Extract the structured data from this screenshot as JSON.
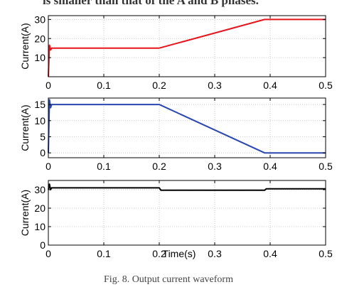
{
  "header_text": "is smaller than that of the A and B phases.",
  "caption": "Fig. 8.    Output current waveform",
  "chart_data": [
    {
      "type": "line",
      "title": "",
      "xlabel": "",
      "ylabel": "Current(A)",
      "xlim": [
        0,
        0.5
      ],
      "ylim": [
        0,
        32
      ],
      "xticks": [
        0,
        0.1,
        0.2,
        0.3,
        0.4,
        0.5
      ],
      "xtick_labels": [
        "0",
        "0.1",
        "0.2",
        "0.3",
        "0.4",
        "0.5"
      ],
      "yticks": [
        10,
        20,
        30
      ],
      "ytick_labels": [
        "10",
        "20",
        "30"
      ],
      "grid": true,
      "series": [
        {
          "color": "#e8141b",
          "x": [
            0,
            0.002,
            0.004,
            0.006,
            0.2,
            0.39,
            0.5
          ],
          "y": [
            0,
            16.5,
            14,
            15,
            15,
            30,
            30
          ]
        }
      ]
    },
    {
      "type": "line",
      "title": "",
      "xlabel": "",
      "ylabel": "Current(A)",
      "xlim": [
        0,
        0.5
      ],
      "ylim": [
        -1.5,
        17
      ],
      "xticks": [
        0,
        0.1,
        0.2,
        0.3,
        0.4,
        0.5
      ],
      "xtick_labels": [
        "0",
        "0.1",
        "0.2",
        "0.3",
        "0.4",
        "0.5"
      ],
      "yticks": [
        0,
        5,
        10,
        15
      ],
      "ytick_labels": [
        "0",
        "5",
        "10",
        "15"
      ],
      "grid": true,
      "series": [
        {
          "color": "#2a46b0",
          "x": [
            0,
            0.002,
            0.004,
            0.006,
            0.2,
            0.39,
            0.5
          ],
          "y": [
            0,
            16.5,
            14,
            15,
            15,
            0,
            0
          ]
        }
      ]
    },
    {
      "type": "line",
      "title": "",
      "xlabel": "Time(s)",
      "ylabel": "Current(A)",
      "xlim": [
        0,
        0.5
      ],
      "ylim": [
        0,
        35
      ],
      "xticks": [
        0,
        0.1,
        0.2,
        0.3,
        0.4,
        0.5
      ],
      "xtick_labels": [
        "0",
        "0.1",
        "0.2",
        "0.3",
        "0.4",
        "0.5"
      ],
      "yticks": [
        0,
        10,
        20,
        30
      ],
      "ytick_labels": [
        "0",
        "10",
        "20",
        "30"
      ],
      "grid": true,
      "series": [
        {
          "color": "#000000",
          "x": [
            0,
            0.002,
            0.004,
            0.006,
            0.2,
            0.203,
            0.39,
            0.393,
            0.5
          ],
          "y": [
            30,
            33,
            30,
            31,
            31,
            29.7,
            29.7,
            30.5,
            30.5
          ]
        }
      ]
    }
  ]
}
